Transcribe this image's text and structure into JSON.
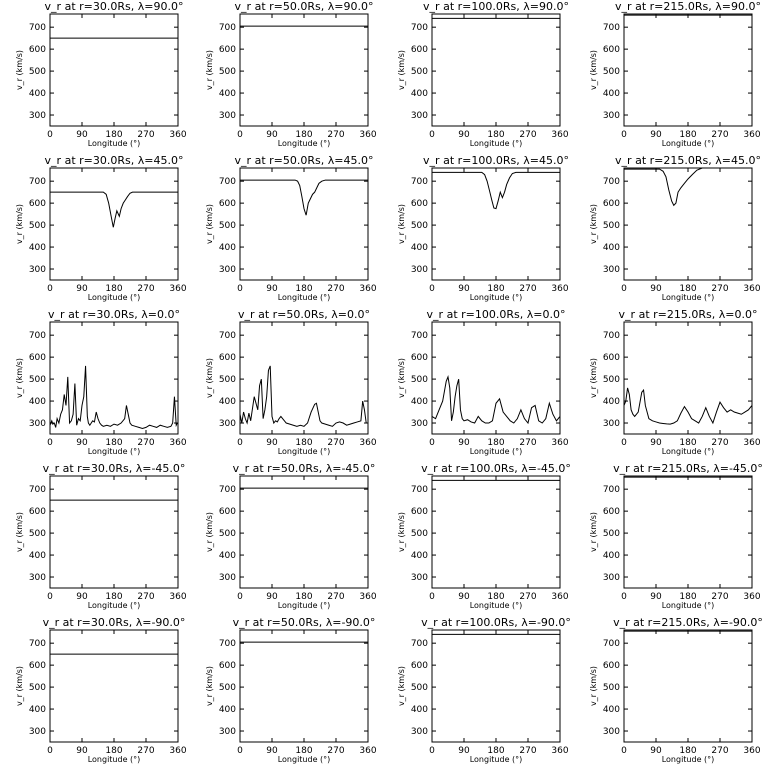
{
  "chart_data": [
    {
      "type": "line",
      "title": "v_r at r=30.0Rs, λ=90.0°",
      "xlabel": "Longitude (°)",
      "ylabel": "v_r (km/s)",
      "xlim": [
        0,
        360
      ],
      "ylim": [
        250,
        760
      ],
      "xticks": [
        0,
        90,
        180,
        270,
        360
      ],
      "yticks": [
        300,
        400,
        500,
        600,
        700
      ],
      "x": [
        0,
        360
      ],
      "y": [
        650,
        650
      ]
    },
    {
      "type": "line",
      "title": "v_r at r=50.0Rs, λ=90.0°",
      "xlabel": "Longitude (°)",
      "ylabel": "v_r (km/s)",
      "xlim": [
        0,
        360
      ],
      "ylim": [
        250,
        760
      ],
      "xticks": [
        0,
        90,
        180,
        270,
        360
      ],
      "yticks": [
        300,
        400,
        500,
        600,
        700
      ],
      "x": [
        0,
        360
      ],
      "y": [
        705,
        705
      ]
    },
    {
      "type": "line",
      "title": "v_r at r=100.0Rs, λ=90.0°",
      "xlabel": "Longitude (°)",
      "ylabel": "v_r (km/s)",
      "xlim": [
        0,
        360
      ],
      "ylim": [
        250,
        760
      ],
      "xticks": [
        0,
        90,
        180,
        270,
        360
      ],
      "yticks": [
        300,
        400,
        500,
        600,
        700
      ],
      "x": [
        0,
        360
      ],
      "y": [
        740,
        740
      ]
    },
    {
      "type": "line",
      "title": "v_r at r=215.0Rs, λ=90.0°",
      "xlabel": "Longitude (°)",
      "ylabel": "v_r (km/s)",
      "xlim": [
        0,
        360
      ],
      "ylim": [
        250,
        760
      ],
      "xticks": [
        0,
        90,
        180,
        270,
        360
      ],
      "yticks": [
        300,
        400,
        500,
        600,
        700
      ],
      "x": [
        0,
        360
      ],
      "y": [
        755,
        755
      ]
    },
    {
      "type": "line",
      "title": "v_r at r=30.0Rs, λ=45.0°",
      "xlabel": "Longitude (°)",
      "ylabel": "v_r (km/s)",
      "xlim": [
        0,
        360
      ],
      "ylim": [
        250,
        760
      ],
      "xticks": [
        0,
        90,
        180,
        270,
        360
      ],
      "yticks": [
        300,
        400,
        500,
        600,
        700
      ],
      "x": [
        0,
        150,
        158,
        165,
        172,
        178,
        183,
        188,
        195,
        200,
        206,
        212,
        218,
        225,
        232,
        360
      ],
      "y": [
        650,
        650,
        640,
        600,
        540,
        490,
        530,
        565,
        540,
        575,
        600,
        615,
        630,
        645,
        650,
        650
      ]
    },
    {
      "type": "line",
      "title": "v_r at r=50.0Rs, λ=45.0°",
      "xlabel": "Longitude (°)",
      "ylabel": "v_r (km/s)",
      "xlim": [
        0,
        360
      ],
      "ylim": [
        250,
        760
      ],
      "xticks": [
        0,
        90,
        180,
        270,
        360
      ],
      "yticks": [
        300,
        400,
        500,
        600,
        700
      ],
      "x": [
        0,
        155,
        162,
        168,
        174,
        180,
        186,
        192,
        198,
        204,
        210,
        216,
        222,
        230,
        240,
        360
      ],
      "y": [
        705,
        705,
        700,
        680,
        630,
        575,
        545,
        600,
        620,
        640,
        650,
        670,
        690,
        700,
        705,
        705
      ]
    },
    {
      "type": "line",
      "title": "v_r at r=100.0Rs, λ=45.0°",
      "xlabel": "Longitude (°)",
      "ylabel": "v_r (km/s)",
      "xlim": [
        0,
        360
      ],
      "ylim": [
        250,
        760
      ],
      "xticks": [
        0,
        90,
        180,
        270,
        360
      ],
      "yticks": [
        300,
        400,
        500,
        600,
        700
      ],
      "x": [
        0,
        140,
        148,
        155,
        162,
        168,
        174,
        180,
        186,
        192,
        198,
        204,
        210,
        218,
        226,
        236,
        246,
        360
      ],
      "y": [
        740,
        740,
        730,
        700,
        655,
        615,
        578,
        575,
        610,
        650,
        625,
        650,
        685,
        715,
        735,
        740,
        740,
        740
      ]
    },
    {
      "type": "line",
      "title": "v_r at r=215.0Rs, λ=45.0°",
      "xlabel": "Longitude (°)",
      "ylabel": "v_r (km/s)",
      "xlim": [
        0,
        360
      ],
      "ylim": [
        250,
        760
      ],
      "xticks": [
        0,
        90,
        180,
        270,
        360
      ],
      "yticks": [
        300,
        400,
        500,
        600,
        700
      ],
      "x": [
        0,
        100,
        110,
        118,
        126,
        134,
        140,
        146,
        152,
        160,
        170,
        180,
        192,
        205,
        220
      ],
      "y": [
        755,
        755,
        745,
        720,
        660,
        610,
        590,
        600,
        650,
        670,
        690,
        710,
        730,
        750,
        760
      ]
    },
    {
      "type": "line",
      "title": "v_r at r=30.0Rs, λ=0.0°",
      "xlabel": "Longitude (°)",
      "ylabel": "v_r (km/s)",
      "xlim": [
        0,
        360
      ],
      "ylim": [
        250,
        760
      ],
      "xticks": [
        0,
        90,
        180,
        270,
        360
      ],
      "yticks": [
        300,
        400,
        500,
        600,
        700
      ],
      "x": [
        0,
        5,
        8,
        12,
        16,
        20,
        25,
        30,
        35,
        40,
        45,
        50,
        55,
        60,
        65,
        70,
        75,
        80,
        85,
        90,
        95,
        100,
        105,
        108,
        112,
        116,
        120,
        125,
        130,
        135,
        140,
        145,
        150,
        160,
        170,
        180,
        190,
        200,
        210,
        215,
        220,
        225,
        230,
        240,
        250,
        260,
        270,
        280,
        290,
        300,
        310,
        320,
        330,
        340,
        345,
        350,
        355,
        358,
        360
      ],
      "y": [
        290,
        310,
        295,
        300,
        280,
        320,
        300,
        340,
        360,
        430,
        380,
        510,
        300,
        310,
        340,
        480,
        290,
        320,
        310,
        380,
        420,
        560,
        330,
        300,
        290,
        300,
        310,
        305,
        350,
        320,
        300,
        290,
        285,
        290,
        285,
        295,
        290,
        300,
        320,
        380,
        340,
        300,
        290,
        285,
        280,
        275,
        280,
        290,
        285,
        280,
        290,
        285,
        280,
        285,
        300,
        420,
        290,
        300,
        300
      ]
    },
    {
      "type": "line",
      "title": "v_r at r=50.0Rs, λ=0.0°",
      "xlabel": "Longitude (°)",
      "ylabel": "v_r (km/s)",
      "xlim": [
        0,
        360
      ],
      "ylim": [
        250,
        760
      ],
      "xticks": [
        0,
        90,
        180,
        270,
        360
      ],
      "yticks": [
        300,
        400,
        500,
        600,
        700
      ],
      "x": [
        0,
        5,
        10,
        15,
        20,
        25,
        30,
        40,
        50,
        55,
        60,
        65,
        70,
        75,
        80,
        85,
        90,
        95,
        100,
        105,
        110,
        115,
        120,
        130,
        140,
        150,
        160,
        170,
        180,
        190,
        200,
        210,
        215,
        220,
        225,
        230,
        240,
        250,
        260,
        270,
        280,
        290,
        300,
        310,
        320,
        330,
        340,
        345,
        350,
        355,
        360
      ],
      "y": [
        340,
        300,
        350,
        320,
        300,
        345,
        310,
        420,
        360,
        470,
        500,
        320,
        360,
        420,
        540,
        560,
        330,
        300,
        310,
        305,
        320,
        330,
        320,
        300,
        295,
        290,
        285,
        290,
        285,
        300,
        350,
        385,
        390,
        350,
        310,
        300,
        295,
        290,
        285,
        300,
        305,
        300,
        290,
        295,
        300,
        305,
        310,
        400,
        360,
        300,
        300
      ]
    },
    {
      "type": "line",
      "title": "v_r at r=100.0Rs, λ=0.0°",
      "xlabel": "Longitude (°)",
      "ylabel": "v_r (km/s)",
      "xlim": [
        0,
        360
      ],
      "ylim": [
        250,
        760
      ],
      "xticks": [
        0,
        90,
        180,
        270,
        360
      ],
      "yticks": [
        300,
        400,
        500,
        600,
        700
      ],
      "x": [
        0,
        10,
        20,
        30,
        40,
        45,
        50,
        55,
        60,
        65,
        70,
        75,
        80,
        85,
        90,
        100,
        110,
        120,
        130,
        140,
        150,
        160,
        170,
        180,
        190,
        200,
        210,
        220,
        230,
        240,
        250,
        260,
        270,
        280,
        290,
        300,
        310,
        320,
        330,
        340,
        350,
        360
      ],
      "y": [
        330,
        320,
        360,
        400,
        490,
        510,
        460,
        310,
        350,
        420,
        470,
        500,
        360,
        320,
        310,
        315,
        305,
        300,
        330,
        310,
        300,
        300,
        310,
        390,
        410,
        350,
        330,
        310,
        300,
        320,
        360,
        320,
        300,
        370,
        380,
        310,
        300,
        320,
        390,
        340,
        310,
        330
      ]
    },
    {
      "type": "line",
      "title": "v_r at r=215.0Rs, λ=0.0°",
      "xlabel": "Longitude (°)",
      "ylabel": "v_r (km/s)",
      "xlim": [
        0,
        360
      ],
      "ylim": [
        250,
        760
      ],
      "xticks": [
        0,
        90,
        180,
        270,
        360
      ],
      "yticks": [
        300,
        400,
        500,
        600,
        700
      ],
      "x": [
        0,
        5,
        10,
        15,
        20,
        25,
        30,
        40,
        50,
        55,
        60,
        70,
        80,
        90,
        100,
        110,
        120,
        130,
        140,
        150,
        160,
        170,
        180,
        190,
        200,
        210,
        220,
        230,
        240,
        250,
        260,
        270,
        280,
        290,
        300,
        310,
        320,
        330,
        340,
        350,
        360
      ],
      "y": [
        380,
        400,
        460,
        430,
        360,
        340,
        330,
        350,
        440,
        450,
        380,
        320,
        310,
        305,
        300,
        298,
        296,
        295,
        300,
        310,
        345,
        375,
        350,
        320,
        310,
        300,
        330,
        370,
        330,
        300,
        350,
        395,
        370,
        350,
        360,
        350,
        345,
        340,
        350,
        360,
        380
      ]
    },
    {
      "type": "line",
      "title": "v_r at r=30.0Rs, λ=-45.0°",
      "xlabel": "Longitude (°)",
      "ylabel": "v_r (km/s)",
      "xlim": [
        0,
        360
      ],
      "ylim": [
        250,
        760
      ],
      "xticks": [
        0,
        90,
        180,
        270,
        360
      ],
      "yticks": [
        300,
        400,
        500,
        600,
        700
      ],
      "x": [
        0,
        360
      ],
      "y": [
        650,
        650
      ]
    },
    {
      "type": "line",
      "title": "v_r at r=50.0Rs, λ=-45.0°",
      "xlabel": "Longitude (°)",
      "ylabel": "v_r (km/s)",
      "xlim": [
        0,
        360
      ],
      "ylim": [
        250,
        760
      ],
      "xticks": [
        0,
        90,
        180,
        270,
        360
      ],
      "yticks": [
        300,
        400,
        500,
        600,
        700
      ],
      "x": [
        0,
        360
      ],
      "y": [
        705,
        705
      ]
    },
    {
      "type": "line",
      "title": "v_r at r=100.0Rs, λ=-45.0°",
      "xlabel": "Longitude (°)",
      "ylabel": "v_r (km/s)",
      "xlim": [
        0,
        360
      ],
      "ylim": [
        250,
        760
      ],
      "xticks": [
        0,
        90,
        180,
        270,
        360
      ],
      "yticks": [
        300,
        400,
        500,
        600,
        700
      ],
      "x": [
        0,
        360
      ],
      "y": [
        740,
        740
      ]
    },
    {
      "type": "line",
      "title": "v_r at r=215.0Rs, λ=-45.0°",
      "xlabel": "Longitude (°)",
      "ylabel": "v_r (km/s)",
      "xlim": [
        0,
        360
      ],
      "ylim": [
        250,
        760
      ],
      "xticks": [
        0,
        90,
        180,
        270,
        360
      ],
      "yticks": [
        300,
        400,
        500,
        600,
        700
      ],
      "x": [
        0,
        360
      ],
      "y": [
        755,
        755
      ]
    },
    {
      "type": "line",
      "title": "v_r at r=30.0Rs, λ=-90.0°",
      "xlabel": "Longitude (°)",
      "ylabel": "v_r (km/s)",
      "xlim": [
        0,
        360
      ],
      "ylim": [
        250,
        760
      ],
      "xticks": [
        0,
        90,
        180,
        270,
        360
      ],
      "yticks": [
        300,
        400,
        500,
        600,
        700
      ],
      "x": [
        0,
        360
      ],
      "y": [
        650,
        650
      ]
    },
    {
      "type": "line",
      "title": "v_r at r=50.0Rs, λ=-90.0°",
      "xlabel": "Longitude (°)",
      "ylabel": "v_r (km/s)",
      "xlim": [
        0,
        360
      ],
      "ylim": [
        250,
        760
      ],
      "xticks": [
        0,
        90,
        180,
        270,
        360
      ],
      "yticks": [
        300,
        400,
        500,
        600,
        700
      ],
      "x": [
        0,
        360
      ],
      "y": [
        705,
        705
      ]
    },
    {
      "type": "line",
      "title": "v_r at r=100.0Rs, λ=-90.0°",
      "xlabel": "Longitude (°)",
      "ylabel": "v_r (km/s)",
      "xlim": [
        0,
        360
      ],
      "ylim": [
        250,
        760
      ],
      "xticks": [
        0,
        90,
        180,
        270,
        360
      ],
      "yticks": [
        300,
        400,
        500,
        600,
        700
      ],
      "x": [
        0,
        360
      ],
      "y": [
        740,
        740
      ]
    },
    {
      "type": "line",
      "title": "v_r at r=215.0Rs, λ=-90.0°",
      "xlabel": "Longitude (°)",
      "ylabel": "v_r (km/s)",
      "xlim": [
        0,
        360
      ],
      "ylim": [
        250,
        760
      ],
      "xticks": [
        0,
        90,
        180,
        270,
        360
      ],
      "yticks": [
        300,
        400,
        500,
        600,
        700
      ],
      "x": [
        0,
        360
      ],
      "y": [
        755,
        755
      ]
    }
  ]
}
